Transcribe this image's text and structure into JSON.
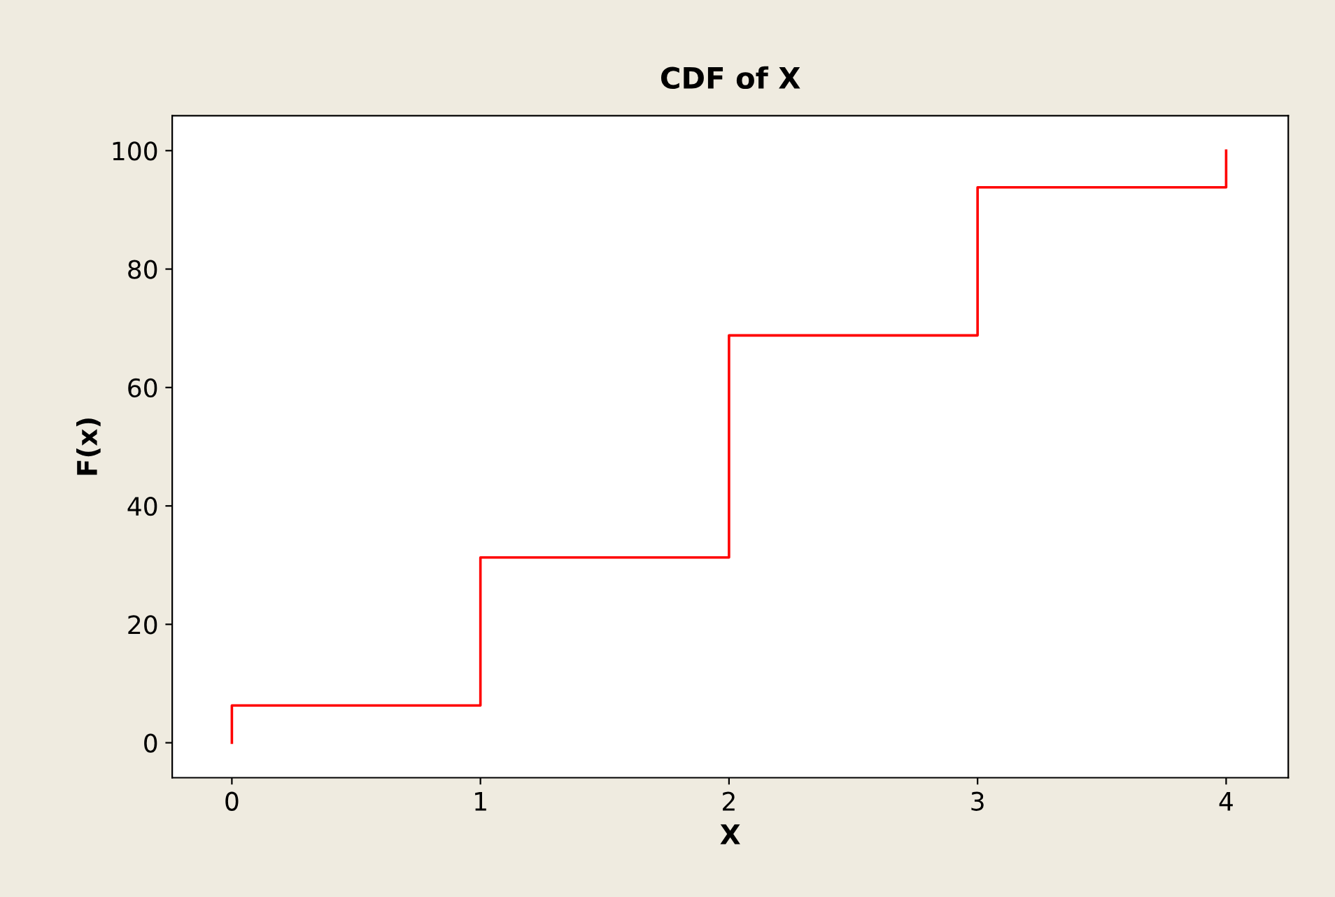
{
  "chart_data": {
    "type": "step",
    "title": "CDF of X",
    "xlabel": "X",
    "ylabel": "F(x)",
    "x": [
      0,
      0,
      1,
      2,
      3,
      4
    ],
    "series": [
      {
        "color": "#ff0000",
        "values": [
          0,
          6.3,
          31.3,
          68.8,
          93.8,
          100
        ]
      }
    ],
    "xlim": [
      -0.24,
      4.25
    ],
    "xticks": [
      0,
      1,
      2,
      3,
      4
    ],
    "ylim": [
      -5.9,
      105.9
    ],
    "yticks": [
      0,
      20,
      40,
      60,
      80,
      100
    ],
    "grid": false,
    "marker": "none",
    "line_style": "solid"
  }
}
